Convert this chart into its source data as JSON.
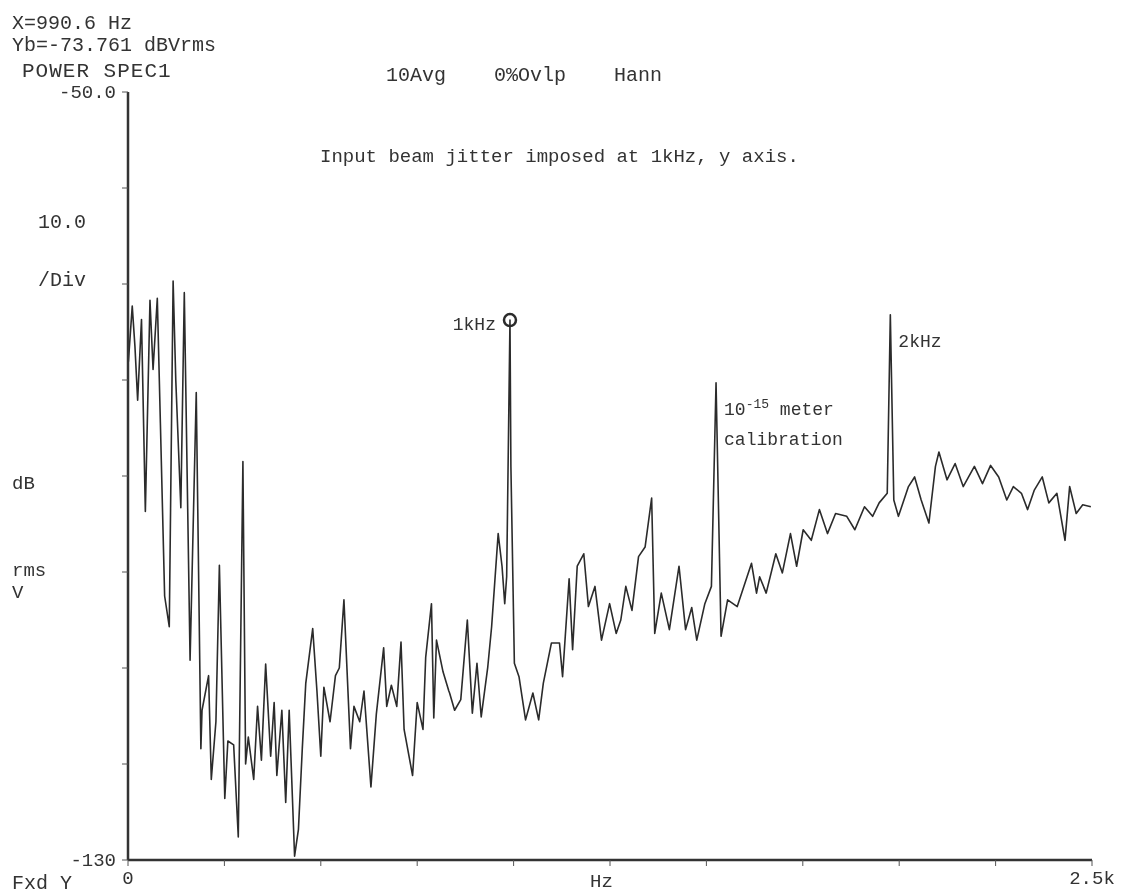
{
  "chart_data": {
    "type": "line",
    "title": "POWER SPEC1",
    "subtitle": "Input beam jitter imposed at 1kHz, y axis.",
    "xlabel": "Hz",
    "ylabel": "dB rms V",
    "annotations": [
      "X=990.6 Hz",
      "Yb=-73.761 dBVrms",
      "10Avg",
      "0%Ovlp",
      "Hann",
      "10.0 /Div",
      "Fxd Y",
      {
        "text": "1kHz",
        "x": 990.6,
        "y": -73.761
      },
      {
        "text": "10$^{-15}$ meter calibration",
        "x": 1525,
        "y": -80.3
      },
      {
        "text": "2kHz",
        "x": 1977,
        "y": -73.2
      }
    ],
    "xlim": [
      0,
      2500
    ],
    "xticks": [
      0,
      {
        "value": 250,
        "label": null
      },
      {
        "value": 500,
        "label": null
      },
      {
        "value": 750,
        "label": null
      },
      {
        "value": 1000,
        "label": null
      },
      {
        "value": 1250,
        "label": null
      },
      {
        "value": 1500,
        "label": null
      },
      {
        "value": 1750,
        "label": null
      },
      {
        "value": 2000,
        "label": null
      },
      {
        "value": 2250,
        "label": null
      },
      {
        "value": 2500,
        "label": "2.5k"
      }
    ],
    "ylim": [
      -130,
      -50
    ],
    "yticks": [
      {
        "value": -50,
        "label": "-50.0"
      },
      {
        "value": -60,
        "label": null
      },
      {
        "value": -70,
        "label": null
      },
      {
        "value": -80,
        "label": null
      },
      {
        "value": -90,
        "label": null
      },
      {
        "value": -100,
        "label": null
      },
      {
        "value": -110,
        "label": null
      },
      {
        "value": -120,
        "label": null
      },
      -130
    ],
    "series": [
      {
        "color": "#2b2b2b",
        "x": [
          1,
          11,
          18,
          25,
          35,
          45,
          57,
          65,
          76,
          84,
          95,
          107,
          117,
          124,
          137,
          146,
          161,
          177,
          189,
          192,
          209,
          216,
          228,
          237,
          251,
          259,
          274,
          286,
          298,
          305,
          312,
          326,
          336,
          346,
          357,
          370,
          379,
          386,
          399,
          409,
          418,
          432,
          442,
          452,
          461,
          479,
          490,
          500,
          508,
          524,
          538,
          548,
          560,
          577,
          586,
          601,
          612,
          630,
          644,
          663,
          671,
          683,
          697,
          708,
          716,
          738,
          750,
          765,
          772,
          787,
          793,
          800,
          817,
          832,
          834,
          847,
          863,
          880,
          893,
          905,
          916,
          933,
          943,
          960,
          970,
          977,
          982,
          990.6,
          993,
          1002,
          1014,
          1031,
          1050,
          1065,
          1077,
          1098,
          1119,
          1127,
          1144,
          1153,
          1165,
          1182,
          1194,
          1211,
          1228,
          1249,
          1266,
          1278,
          1291,
          1307,
          1324,
          1341,
          1358,
          1366,
          1383,
          1404,
          1429,
          1446,
          1462,
          1475,
          1496,
          1513,
          1525,
          1538,
          1555,
          1580,
          1617,
          1630,
          1638,
          1655,
          1680,
          1697,
          1718,
          1734,
          1751,
          1772,
          1793,
          1814,
          1835,
          1864,
          1885,
          1910,
          1931,
          1948,
          1969,
          1977,
          1986,
          1998,
          2024,
          2040,
          2057,
          2077,
          2094,
          2103,
          2124,
          2145,
          2166,
          2195,
          2216,
          2237,
          2258,
          2279,
          2296,
          2317,
          2333,
          2350,
          2371,
          2388,
          2409,
          2430,
          2442,
          2459,
          2476,
          2497
        ],
        "values": [
          -78.1,
          -72.3,
          -76.5,
          -82.1,
          -73.7,
          -93.7,
          -71.7,
          -78.9,
          -71.5,
          -84.5,
          -102.5,
          -105.7,
          -69.7,
          -80.1,
          -93.3,
          -70.9,
          -109.2,
          -81.3,
          -118.4,
          -114.4,
          -110.8,
          -121.6,
          -115.6,
          -99.3,
          -123.6,
          -117.6,
          -118.0,
          -127.6,
          -88.5,
          -120.0,
          -117.2,
          -121.6,
          -114.0,
          -119.6,
          -109.6,
          -119.2,
          -113.6,
          -121.2,
          -114.4,
          -124.0,
          -114.4,
          -129.6,
          -126.8,
          -118.4,
          -111.6,
          -105.9,
          -112.4,
          -119.2,
          -112.0,
          -115.6,
          -110.8,
          -110.0,
          -102.9,
          -118.4,
          -114.0,
          -115.6,
          -112.4,
          -122.4,
          -114.8,
          -107.9,
          -114.0,
          -111.8,
          -114.0,
          -107.3,
          -116.4,
          -121.2,
          -113.6,
          -116.4,
          -108.9,
          -103.3,
          -115.2,
          -107.1,
          -110.4,
          -112.4,
          -112.6,
          -114.4,
          -113.3,
          -105.0,
          -114.7,
          -109.5,
          -115.1,
          -109.9,
          -105.7,
          -96.0,
          -99.4,
          -103.3,
          -100.5,
          -73.761,
          -89.0,
          -109.5,
          -110.9,
          -115.4,
          -112.6,
          -115.4,
          -111.6,
          -107.4,
          -107.4,
          -110.9,
          -100.7,
          -108.1,
          -99.4,
          -98.1,
          -103.6,
          -101.5,
          -107.1,
          -103.3,
          -106.4,
          -105.0,
          -101.5,
          -104.0,
          -98.4,
          -97.4,
          -92.3,
          -106.4,
          -102.2,
          -106.0,
          -99.4,
          -106.0,
          -103.7,
          -107.1,
          -103.3,
          -101.5,
          -80.3,
          -106.7,
          -102.9,
          -103.6,
          -99.1,
          -102.2,
          -100.5,
          -102.2,
          -98.1,
          -100.1,
          -96.0,
          -99.4,
          -95.6,
          -96.7,
          -93.5,
          -96.0,
          -93.9,
          -94.2,
          -95.6,
          -93.2,
          -94.2,
          -92.8,
          -91.8,
          -73.2,
          -92.5,
          -94.2,
          -91.1,
          -90.1,
          -92.5,
          -94.9,
          -89.0,
          -87.5,
          -90.4,
          -88.7,
          -91.1,
          -89.0,
          -90.8,
          -88.9,
          -90.1,
          -92.5,
          -91.1,
          -91.8,
          -93.5,
          -91.5,
          -90.1,
          -92.8,
          -91.8,
          -96.7,
          -91.1,
          -93.9,
          -93.0,
          -93.2
        ]
      },
      {
        "type": "scatter",
        "color": "#2b2b2b",
        "marker": "circle",
        "x": [
          990.6
        ],
        "values": [
          -73.761
        ]
      }
    ]
  }
}
